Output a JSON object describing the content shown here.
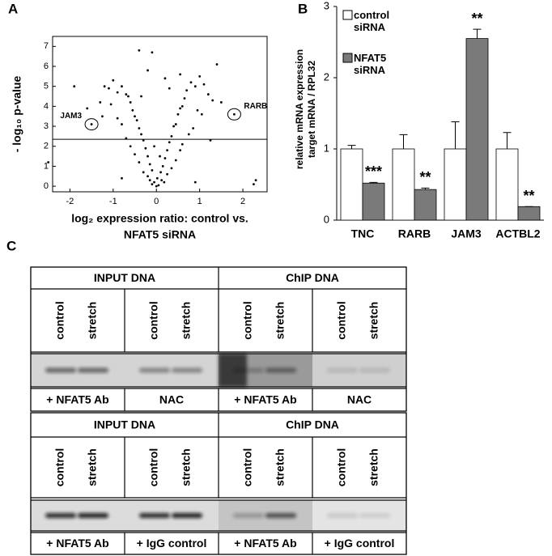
{
  "chart_data": [
    {
      "type": "scatter",
      "panel": "A",
      "ylabel": "- log₁₀ p-value",
      "xlabel": [
        "log₂ expression ratio: control vs.",
        "NFAT5 siRNA"
      ],
      "xlim": [
        -2.4,
        2.56
      ],
      "ylim": [
        -0.28,
        7.5
      ],
      "xticks": [
        -2,
        -1,
        0,
        1,
        2
      ],
      "yticks": [
        0,
        1,
        2,
        3,
        4,
        5,
        6,
        7
      ],
      "threshold": 2.35,
      "color": "#000000",
      "x": [
        -0.05,
        0.02,
        -0.1,
        0.1,
        -0.15,
        0.15,
        -0.2,
        0.2,
        -0.25,
        0.25,
        -0.3,
        0.3,
        -0.35,
        0.35,
        -0.4,
        0.4,
        -0.45,
        0.45,
        -0.5,
        0.5,
        -0.55,
        0.55,
        -0.6,
        0.6,
        -0.65,
        0.65,
        -0.7,
        0.7,
        -0.8,
        0.8,
        -0.9,
        0.9,
        -1.0,
        1.0,
        -1.1,
        1.1,
        -1.2,
        1.2,
        -1.3,
        1.3,
        -0.1,
        0.05,
        0.12,
        -0.2,
        0.25,
        -0.3,
        0.35,
        -0.4,
        0.45,
        -0.15,
        0.18,
        -0.5,
        0.55,
        -0.6,
        0.6,
        -0.7,
        0.75,
        -0.8,
        0.85,
        -0.9,
        0.95,
        -1.05,
        1.05,
        -0.35,
        0.3,
        -0.2,
        0.2,
        -0.4,
        -0.1,
        0.55,
        -1.9,
        1.4,
        -1.5,
        1.8,
        2.25,
        2.3,
        -2.5,
        1.25,
        -1.25,
        1.5,
        -1.6,
        0.0,
        0.08,
        -0.05,
        0.9,
        -0.8
      ],
      "y": [
        0.2,
        0.4,
        0.8,
        0.7,
        1.1,
        1.0,
        1.5,
        1.4,
        1.9,
        1.8,
        2.3,
        2.2,
        2.6,
        2.5,
        2.9,
        3.0,
        3.3,
        3.1,
        3.5,
        3.6,
        3.8,
        3.9,
        4.2,
        4.0,
        4.5,
        4.4,
        4.6,
        4.8,
        5.0,
        5.2,
        4.7,
        5.0,
        5.3,
        5.5,
        4.9,
        5.1,
        5.0,
        4.6,
        4.2,
        4.3,
        0.1,
        0.05,
        0.3,
        0.5,
        0.6,
        0.7,
        0.9,
        1.2,
        1.3,
        0.3,
        0.2,
        1.6,
        1.8,
        2.0,
        2.1,
        2.4,
        2.6,
        3.1,
        2.9,
        3.4,
        3.8,
        4.1,
        3.6,
        4.5,
        4.9,
        5.8,
        5.4,
        6.8,
        6.7,
        5.6,
        5.0,
        6.1,
        3.1,
        3.6,
        0.1,
        0.3,
        1.2,
        2.3,
        3.5,
        4.2,
        3.9,
        0.0,
        1.5,
        2.0,
        0.2,
        0.4
      ],
      "annotations": [
        {
          "text": "JAM3",
          "x": -1.5,
          "y": 3.1
        },
        {
          "text": "RARB",
          "x": 1.8,
          "y": 3.6
        }
      ]
    },
    {
      "type": "bar",
      "panel": "B",
      "ylabel": [
        "relative mRNA expression",
        "target mRNA / RPL32"
      ],
      "categories": [
        "TNC",
        "RARB",
        "JAM3",
        "ACTBL2"
      ],
      "ylim": [
        0,
        3
      ],
      "yticks": [
        0,
        1,
        2,
        3
      ],
      "series": [
        {
          "name": "control siRNA",
          "color": "#ffffff",
          "values": [
            1,
            1,
            1,
            1
          ],
          "errors": [
            0.05,
            0.2,
            0.38,
            0.23
          ]
        },
        {
          "name": "NFAT5 siRNA",
          "color": "#7a7a7a",
          "values": [
            0.52,
            0.43,
            2.55,
            0.19
          ],
          "errors": [
            0.01,
            0.02,
            0.13,
            0
          ],
          "significance": [
            "***",
            "**",
            "**",
            "**"
          ]
        }
      ]
    }
  ],
  "panel_c": {
    "label": "C",
    "blots": [
      {
        "headers": [
          "INPUT DNA",
          "ChIP DNA"
        ],
        "lanes": [
          "control",
          "stretch",
          "control",
          "stretch",
          "control",
          "stretch",
          "control",
          "stretch"
        ],
        "labels": [
          "+ NFAT5 Ab",
          "NAC",
          "+ NFAT5 Ab",
          "NAC"
        ]
      },
      {
        "headers": [
          "INPUT DNA",
          "ChIP DNA"
        ],
        "lanes": [
          "control",
          "stretch",
          "control",
          "stretch",
          "control",
          "stretch",
          "control",
          "stretch"
        ],
        "labels": [
          "+ NFAT5 Ab",
          "+ IgG control",
          "+ NFAT5 Ab",
          "+ IgG control"
        ]
      }
    ]
  }
}
